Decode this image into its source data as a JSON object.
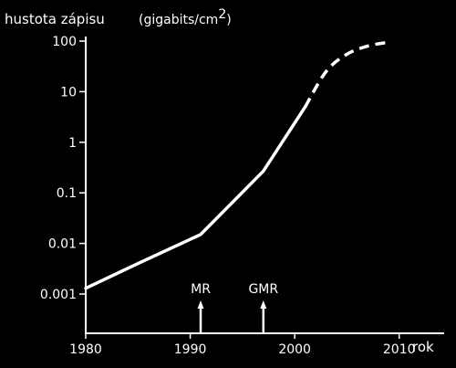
{
  "chart_data": {
    "type": "line",
    "title": "",
    "ylabel": "hustota zápisu",
    "yunit": "(gigabits/cm",
    "yunit_sup": "2",
    "yunit_close": ")",
    "xlabel": "rok",
    "yscale": "log",
    "xlim": [
      1980,
      2015
    ],
    "ylim": [
      0.0001,
      100
    ],
    "x_ticks": [
      1980,
      1990,
      2000,
      2010
    ],
    "x_tick_labels": [
      "1980",
      "1990",
      "2000",
      "2010"
    ],
    "y_ticks": [
      0.001,
      0.01,
      0.1,
      1,
      10,
      100
    ],
    "y_tick_labels": [
      "0.001",
      "0.01",
      "0.1",
      "1",
      "10",
      "100"
    ],
    "grid": false,
    "series": [
      {
        "style": "solid",
        "x": [
          1980,
          1985,
          1991,
          1997,
          2001
        ],
        "y": [
          0.0013,
          0.004,
          0.015,
          0.27,
          5
        ]
      },
      {
        "style": "dashed",
        "x": [
          2001,
          2003,
          2005,
          2007,
          2009
        ],
        "y": [
          5,
          25,
          55,
          80,
          95
        ]
      }
    ],
    "annotations": [
      {
        "label": "MR",
        "x": 1991
      },
      {
        "label": "GMR",
        "x": 1997
      }
    ]
  }
}
